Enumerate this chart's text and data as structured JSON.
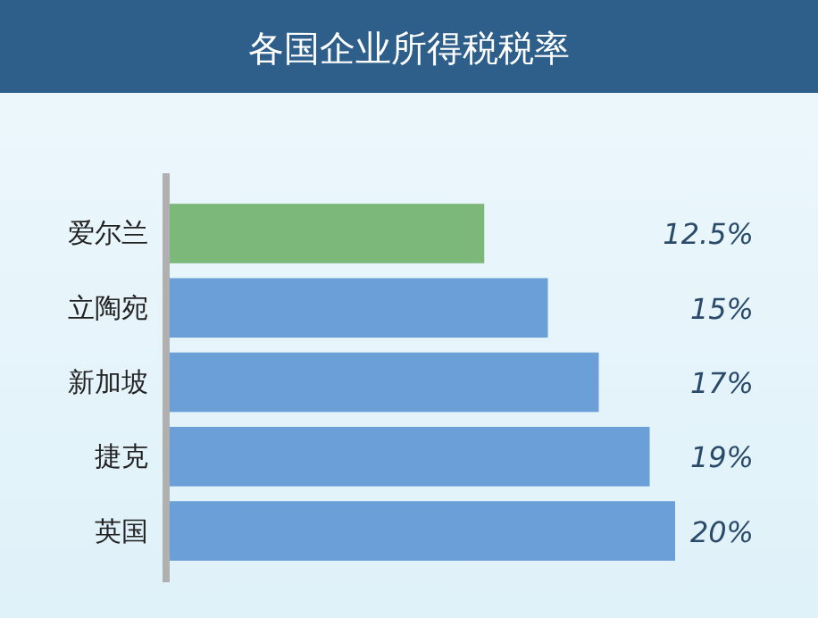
{
  "chart_data": {
    "type": "bar",
    "orientation": "horizontal",
    "title": "各国企业所得税税率",
    "categories": [
      "爱尔兰",
      "立陶宛",
      "新加坡",
      "捷克",
      "英国"
    ],
    "values": [
      12.5,
      15,
      17,
      19,
      20
    ],
    "colors": [
      "#7cb87a",
      "#6a9fd8",
      "#6a9fd8",
      "#6a9fd8",
      "#6a9fd8"
    ],
    "value_labels": [
      "12.5%",
      "15%",
      "17%",
      "19%",
      "20%"
    ]
  }
}
